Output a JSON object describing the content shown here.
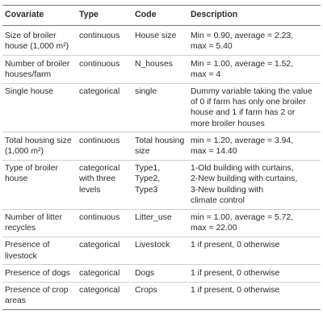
{
  "table": {
    "headers": [
      "Covariate",
      "Type",
      "Code",
      "Description"
    ],
    "rows": [
      [
        "Size of broiler\nhouse (1,000 m²)",
        "continuous",
        "House size",
        "Min = 0.90, average = 2.23,\nmax = 5.40"
      ],
      [
        "Number of broiler\nhouses/farm",
        "continuous",
        "N_houses",
        "Min = 1.00, average = 1.52,\nmax = 4"
      ],
      [
        "Single house",
        "categorical",
        "single",
        "Dummy variable taking the value\nof 0 if farm has only one broiler\nhouse and 1 if farm has 2 or\nmore broiler houses"
      ],
      [
        "Total housing size\n(1,000 m²)",
        "continuous",
        "Total housing\nsize",
        "min = 1.20, average = 3.94,\nmax = 14.40"
      ],
      [
        "Type of broiler\nhouse",
        "categorical\nwith three\nlevels",
        "Type1, Type2,\nType3",
        "1-Old building with curtains,\n2-New building with curtains,\n3-New building with\nclimate control"
      ],
      [
        "Number of litter\nrecycles",
        "continuous",
        "Litter_use",
        "min = 1.00, average = 5.72,\nmax = 22.00"
      ],
      [
        "Presence of\nlivestock",
        "categorical",
        "Livestock",
        "1 if present, 0 otherwise"
      ],
      [
        "Presence of dogs",
        "categorical",
        "Dogs",
        "1 if present, 0 otherwise"
      ],
      [
        "Presence of crop\nareas",
        "categorical",
        "Crops",
        "1 if present, 0 otherwise"
      ]
    ]
  }
}
